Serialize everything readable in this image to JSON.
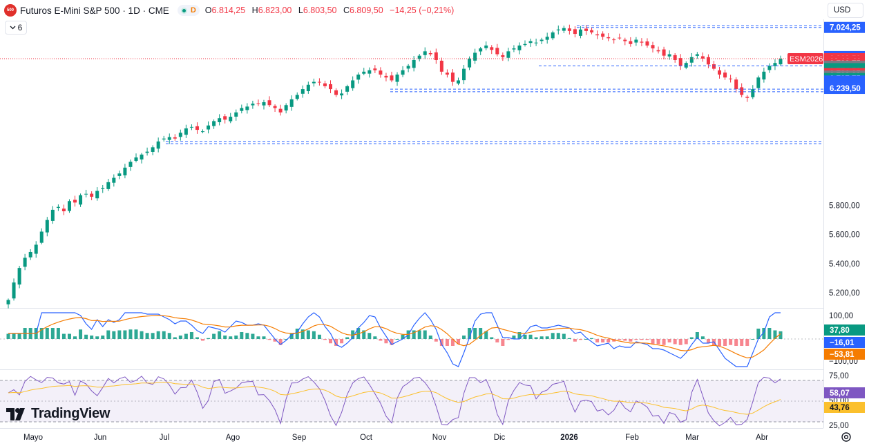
{
  "header": {
    "logo_text": "500",
    "symbol": "Futuros E-Mini S&P 500 · 1D · CME",
    "badge_d": "D",
    "o_label": "O",
    "o_value": "6.814,25",
    "h_label": "H",
    "h_value": "6.823,00",
    "l_label": "L",
    "l_value": "6.803,50",
    "c_label": "C",
    "c_value": "6.809,50",
    "change": "−14,25 (−0,21%)",
    "indicators_count": "6",
    "currency": "USD"
  },
  "brand": {
    "name": "TradingView"
  },
  "icons": [
    "logo-icon",
    "chevron-down-icon",
    "gear-icon",
    "tradingview-logo-icon"
  ],
  "colors": {
    "up": "#089981",
    "down": "#f23645",
    "line_blue": "#2962ff",
    "line_orange": "#f57c00",
    "rsi": "#7e57c2",
    "rsi_ma": "#fbc02d"
  },
  "chart_data": {
    "type": "candlestick",
    "x_ticks": [
      "Mayo",
      "Jun",
      "Jul",
      "Ago",
      "Sep",
      "Oct",
      "Nov",
      "Dic",
      "2026",
      "Feb",
      "Mar",
      "Abr"
    ],
    "price_ticks": [
      "5.200,00",
      "5.400,00",
      "5.600,00",
      "5.800,00"
    ],
    "ylim": [
      5100,
      7080
    ],
    "price_labels": [
      {
        "text": "7.024,25",
        "value": 7024.25,
        "color": "#2962ff",
        "key": "tp1"
      },
      {
        "text": "6.810,50",
        "value": 6824,
        "color": "#2962ff",
        "key": "tp2"
      },
      {
        "text": "ESM2026",
        "value": 6809.5,
        "color": "#f23645",
        "key": "sym",
        "side": "left"
      },
      {
        "text": "6.809,50",
        "value": 6809.5,
        "color": "#f23645",
        "key": "last"
      },
      {
        "text": "19:19:11",
        "value": 6792,
        "color": "#f23645",
        "key": "timer"
      },
      {
        "text": "6.782,75",
        "value": 6775,
        "color": "#f23645",
        "key": "lp1"
      },
      {
        "text": "6.779,25",
        "value": 6758,
        "color": "#787b86",
        "key": "g1"
      },
      {
        "text": "6.776,25",
        "value": 6741,
        "color": "#089981",
        "key": "gp1"
      },
      {
        "text": "6.774,50",
        "value": 6724,
        "color": "#089981",
        "key": "gp2"
      },
      {
        "text": "6.736,25",
        "value": 6707,
        "color": "#f23645",
        "key": "lp2"
      },
      {
        "text": "6.732,00",
        "value": 6690,
        "color": "#787b86",
        "key": "g2"
      },
      {
        "text": "6.727,75",
        "value": 6673,
        "color": "#089981",
        "key": "gp3"
      },
      {
        "text": "6.562,75",
        "value": 6656,
        "color": "#2962ff",
        "key": "bp1"
      },
      {
        "text": "6.538,50",
        "value": 6639,
        "color": "#2962ff",
        "key": "bp2"
      },
      {
        "text": "6.270,25",
        "value": 6622,
        "color": "#2962ff",
        "key": "bp3"
      },
      {
        "text": "6.239,50",
        "value": 6605,
        "color": "#2962ff",
        "key": "bp4"
      }
    ],
    "macd": {
      "ticks": [
        "100,00",
        "−100,00"
      ],
      "labels": [
        {
          "text": "37,80",
          "color": "#089981"
        },
        {
          "text": "−16,01",
          "color": "#2962ff"
        },
        {
          "text": "−53,81",
          "color": "#f57c00"
        }
      ]
    },
    "rsi": {
      "ticks": [
        "75,00",
        "50,00",
        "25,00"
      ],
      "labels": [
        {
          "text": "58,07",
          "color": "#7e57c2"
        },
        {
          "text": "43,76",
          "color": "#fbc02d"
        }
      ]
    },
    "close_series": [
      5150,
      5270,
      5370,
      5440,
      5480,
      5530,
      5620,
      5700,
      5770,
      5790,
      5760,
      5830,
      5820,
      5870,
      5880,
      5860,
      5900,
      5920,
      5960,
      5990,
      6020,
      6060,
      6100,
      6130,
      6150,
      6170,
      6200,
      6240,
      6260,
      6270,
      6260,
      6300,
      6330,
      6340,
      6320,
      6310,
      6350,
      6380,
      6400,
      6390,
      6410,
      6440,
      6470,
      6480,
      6500,
      6500,
      6510,
      6490,
      6470,
      6440,
      6490,
      6530,
      6560,
      6600,
      6630,
      6650,
      6650,
      6620,
      6600,
      6560,
      6570,
      6620,
      6660,
      6700,
      6720,
      6730,
      6730,
      6700,
      6680,
      6660,
      6700,
      6730,
      6760,
      6800,
      6830,
      6860,
      6840,
      6800,
      6720,
      6700,
      6650,
      6660,
      6740,
      6810,
      6850,
      6880,
      6900,
      6870,
      6840,
      6820,
      6860,
      6880,
      6900,
      6910,
      6930,
      6920,
      6940,
      6960,
      6990,
      7010,
      7020,
      7000,
      6980,
      7010,
      7000,
      6990,
      6970,
      6960,
      6950,
      6940,
      6950,
      6930,
      6910,
      6940,
      6920,
      6900,
      6880,
      6860,
      6830,
      6840,
      6800,
      6760,
      6780,
      6820,
      6840,
      6810,
      6770,
      6740,
      6700,
      6680,
      6670,
      6600,
      6560,
      6540,
      6600,
      6680,
      6720,
      6760,
      6780,
      6809
    ]
  }
}
